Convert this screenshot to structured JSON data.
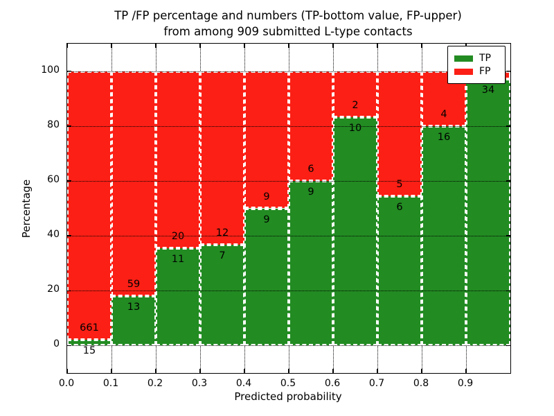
{
  "title": {
    "line1": "TP /FP percentage and numbers (TP-bottom value, FP-upper)",
    "line2": "from among 909 submitted L-type contacts"
  },
  "chart_data": {
    "type": "bar",
    "stacked": true,
    "percentage_normalized": true,
    "title": "TP /FP percentage and numbers (TP-bottom value, FP-upper) from among 909 submitted L-type contacts",
    "xlabel": "Predicted probability",
    "ylabel": "Percentage",
    "total_contacts": 909,
    "xlim": [
      0.0,
      1.0
    ],
    "ylim": [
      -10,
      110
    ],
    "yticks": [
      0,
      20,
      40,
      60,
      80,
      100
    ],
    "xticks": [
      0.0,
      0.1,
      0.2,
      0.3,
      0.4,
      0.5,
      0.6,
      0.7,
      0.8,
      0.9
    ],
    "xtick_labels": [
      "0.0",
      "0.1",
      "0.2",
      "0.3",
      "0.4",
      "0.5",
      "0.6",
      "0.7",
      "0.8",
      "0.9"
    ],
    "bin_width": 0.1,
    "categories": [
      "0.0-0.1",
      "0.1-0.2",
      "0.2-0.3",
      "0.3-0.4",
      "0.4-0.5",
      "0.5-0.6",
      "0.6-0.7",
      "0.7-0.8",
      "0.8-0.9",
      "0.9-1.0"
    ],
    "series": [
      {
        "name": "TP",
        "color": "#228b22",
        "counts": [
          15,
          13,
          11,
          7,
          9,
          9,
          10,
          6,
          16,
          34
        ]
      },
      {
        "name": "FP",
        "color": "#fb1f15",
        "counts": [
          661,
          59,
          20,
          12,
          9,
          6,
          2,
          5,
          4,
          1
        ]
      }
    ],
    "fp_label_visible": [
      true,
      true,
      true,
      true,
      true,
      true,
      true,
      true,
      true,
      false
    ],
    "grid": "dotted black, horizontal lines drawn over bars",
    "bar_edge": {
      "color": "#ffffff",
      "style": "dashed"
    },
    "legend": {
      "position": "upper right",
      "entries": [
        {
          "label": "TP",
          "color": "#228b22"
        },
        {
          "label": "FP",
          "color": "#fb1f15"
        }
      ]
    }
  }
}
